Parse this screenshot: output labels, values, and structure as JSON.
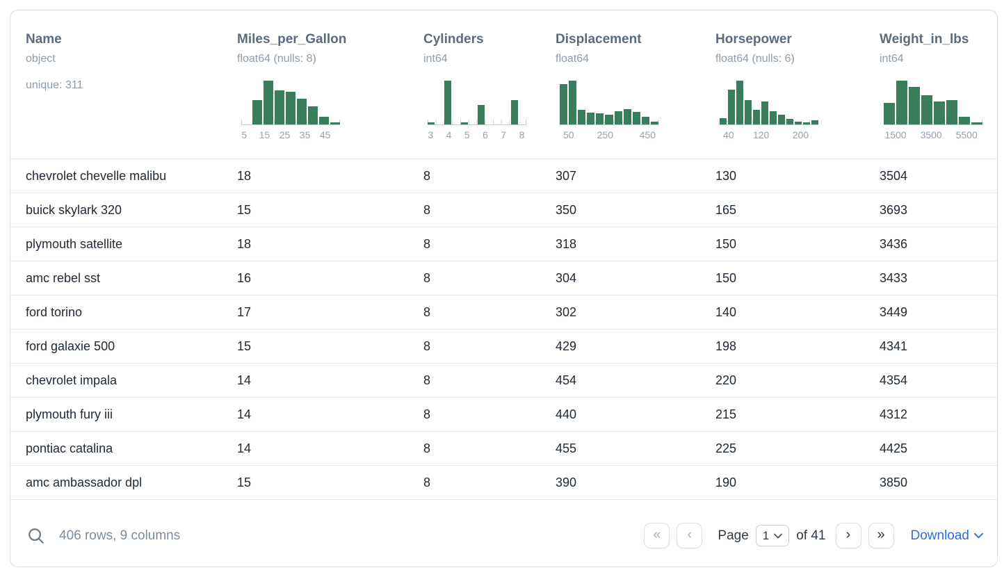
{
  "colors": {
    "histogram_bar": "#3a7d5d",
    "accent_link": "#2e6be6"
  },
  "table": {
    "columns": [
      {
        "name": "Name",
        "type": "object",
        "unique": "unique: 311"
      },
      {
        "name": "Miles_per_Gallon",
        "type": "float64 (nulls: 8)",
        "hist": {
          "bars": [
            0,
            0.55,
            1,
            0.78,
            0.75,
            0.58,
            0.42,
            0.18,
            0.05
          ],
          "ticks": [
            {
              "label": "5",
              "pos": 0.03
            },
            {
              "label": "15",
              "pos": 0.235
            },
            {
              "label": "25",
              "pos": 0.44
            },
            {
              "label": "35",
              "pos": 0.645
            },
            {
              "label": "45",
              "pos": 0.85
            }
          ]
        }
      },
      {
        "name": "Cylinders",
        "type": "int64",
        "hist": {
          "bars": [
            0.04,
            0,
            1,
            0,
            0.04,
            0,
            0.45,
            0,
            0,
            0,
            0.55,
            0
          ],
          "ticks": [
            {
              "label": "3",
              "pos": 0.03
            },
            {
              "label": "4",
              "pos": 0.215
            },
            {
              "label": "5",
              "pos": 0.4
            },
            {
              "label": "6",
              "pos": 0.585
            },
            {
              "label": "7",
              "pos": 0.77
            },
            {
              "label": "8",
              "pos": 0.955
            }
          ]
        }
      },
      {
        "name": "Displacement",
        "type": "float64",
        "hist": {
          "bars": [
            0.92,
            1,
            0.33,
            0.27,
            0.25,
            0.22,
            0.3,
            0.35,
            0.28,
            0.18,
            0.06
          ],
          "ticks": [
            {
              "label": "50",
              "pos": 0.09
            },
            {
              "label": "250",
              "pos": 0.46
            },
            {
              "label": "450",
              "pos": 0.89
            }
          ]
        }
      },
      {
        "name": "Horsepower",
        "type": "float64 (nulls: 6)",
        "hist": {
          "bars": [
            0.15,
            0.8,
            1,
            0.55,
            0.33,
            0.52,
            0.3,
            0.22,
            0.12,
            0.07,
            0.04,
            0.1
          ],
          "ticks": [
            {
              "label": "40",
              "pos": 0.09
            },
            {
              "label": "120",
              "pos": 0.42
            },
            {
              "label": "200",
              "pos": 0.82
            }
          ]
        }
      },
      {
        "name": "Weight_in_lbs",
        "type": "int64",
        "hist": {
          "bars": [
            0.5,
            1,
            0.86,
            0.66,
            0.52,
            0.55,
            0.17,
            0.04
          ],
          "ticks": [
            {
              "label": "1500",
              "pos": 0.12
            },
            {
              "label": "3500",
              "pos": 0.48
            },
            {
              "label": "5500",
              "pos": 0.84
            }
          ]
        }
      }
    ],
    "rows": [
      [
        "chevrolet chevelle malibu",
        "18",
        "8",
        "307",
        "130",
        "3504"
      ],
      [
        "buick skylark 320",
        "15",
        "8",
        "350",
        "165",
        "3693"
      ],
      [
        "plymouth satellite",
        "18",
        "8",
        "318",
        "150",
        "3436"
      ],
      [
        "amc rebel sst",
        "16",
        "8",
        "304",
        "150",
        "3433"
      ],
      [
        "ford torino",
        "17",
        "8",
        "302",
        "140",
        "3449"
      ],
      [
        "ford galaxie 500",
        "15",
        "8",
        "429",
        "198",
        "4341"
      ],
      [
        "chevrolet impala",
        "14",
        "8",
        "454",
        "220",
        "4354"
      ],
      [
        "plymouth fury iii",
        "14",
        "8",
        "440",
        "215",
        "4312"
      ],
      [
        "pontiac catalina",
        "14",
        "8",
        "455",
        "225",
        "4425"
      ],
      [
        "amc ambassador dpl",
        "15",
        "8",
        "390",
        "190",
        "3850"
      ]
    ]
  },
  "footer": {
    "status": "406 rows, 9 columns",
    "first_label": "«",
    "prev_label": "‹",
    "page_label": "Page",
    "page_value": "1",
    "of_label": "of 41",
    "next_label": "›",
    "last_label": "»",
    "download_label": "Download"
  }
}
